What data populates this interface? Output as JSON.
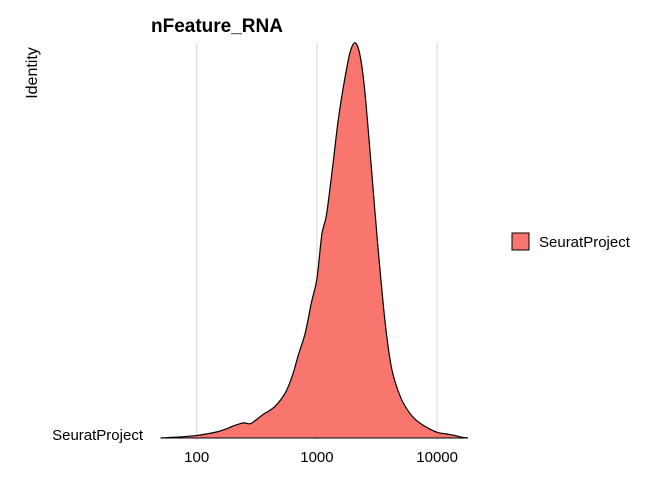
{
  "chart_data": {
    "type": "area",
    "subtype": "ridgeline-density",
    "title": "nFeature_RNA",
    "xlabel": "",
    "ylabel": "Identity",
    "x_scale": "log10",
    "xlim": [
      45,
      25000
    ],
    "x_ticks": [
      100,
      1000,
      10000
    ],
    "x_tick_labels": [
      "100",
      "1000",
      "10000"
    ],
    "grid": "vertical major gridlines",
    "legend_position": "right",
    "series": [
      {
        "name": "SeuratProject",
        "y_label": "SeuratProject",
        "color": "#F8766D",
        "density_points": [
          [
            50,
            0.0
          ],
          [
            60,
            0.003
          ],
          [
            70,
            0.006
          ],
          [
            80,
            0.009
          ],
          [
            90,
            0.012
          ],
          [
            100,
            0.016
          ],
          [
            120,
            0.025
          ],
          [
            150,
            0.04
          ],
          [
            180,
            0.06
          ],
          [
            200,
            0.075
          ],
          [
            230,
            0.09
          ],
          [
            250,
            0.095
          ],
          [
            280,
            0.09
          ],
          [
            320,
            0.12
          ],
          [
            360,
            0.15
          ],
          [
            400,
            0.17
          ],
          [
            450,
            0.2
          ],
          [
            500,
            0.24
          ],
          [
            560,
            0.3
          ],
          [
            630,
            0.4
          ],
          [
            700,
            0.52
          ],
          [
            800,
            0.66
          ],
          [
            900,
            0.85
          ],
          [
            1000,
            1.0
          ],
          [
            1100,
            1.28
          ],
          [
            1200,
            1.4
          ],
          [
            1350,
            1.7
          ],
          [
            1500,
            1.99
          ],
          [
            1700,
            2.25
          ],
          [
            1900,
            2.43
          ],
          [
            2100,
            2.48
          ],
          [
            2300,
            2.39
          ],
          [
            2500,
            2.18
          ],
          [
            2800,
            1.75
          ],
          [
            3200,
            1.22
          ],
          [
            3700,
            0.72
          ],
          [
            4200,
            0.43
          ],
          [
            5000,
            0.25
          ],
          [
            6000,
            0.15
          ],
          [
            7000,
            0.1
          ],
          [
            8500,
            0.06
          ],
          [
            10000,
            0.036
          ],
          [
            12000,
            0.025
          ],
          [
            14000,
            0.016
          ],
          [
            16000,
            0.005
          ],
          [
            18000,
            0.0
          ]
        ]
      }
    ]
  }
}
